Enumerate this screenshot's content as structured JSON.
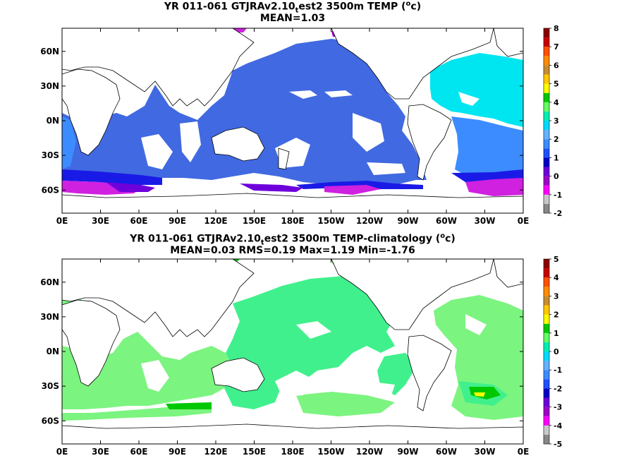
{
  "panels": [
    {
      "title_main": "YR 011-061 GTJRAv2.10",
      "title_sub": "t",
      "title_rest": "est2 3500m TEMP (",
      "title_sup": "o",
      "title_end": "c)",
      "stats": "MEAN=1.03",
      "colorbar_labels": [
        "8",
        "7",
        "6",
        "5",
        "4",
        "3",
        "2",
        "1",
        "0",
        "-1",
        "-2"
      ]
    },
    {
      "title_main": "YR 011-061 GTJRAv2.10",
      "title_sub": "t",
      "title_rest": "est2 3500m TEMP-climatology (",
      "title_sup": "o",
      "title_end": "c)",
      "stats": "MEAN=0.03   RMS=0.19   Max=1.19   Min=-1.76",
      "colorbar_labels": [
        "5",
        "4",
        "3",
        "2",
        "1",
        "0",
        "-1",
        "-2",
        "-3",
        "-4",
        "-5"
      ]
    }
  ],
  "lat_labels": [
    "60N",
    "30N",
    "0N",
    "30S",
    "60S"
  ],
  "lon_labels": [
    "0E",
    "30E",
    "60E",
    "90E",
    "120E",
    "150E",
    "180E",
    "150W",
    "120W",
    "90W",
    "60W",
    "30W",
    "0E"
  ],
  "colorbar_colors": [
    "#888888",
    "#c8c8c8",
    "#ff00ff",
    "#a000c8",
    "#6e00dc",
    "#0000c8",
    "#1e50ff",
    "#3c8cff",
    "#64b4ff",
    "#00dcff",
    "#00f0b4",
    "#64ff64",
    "#00c800",
    "#ffff00",
    "#ffc800",
    "#c88c32",
    "#ff8c00",
    "#ff5000",
    "#c80000",
    "#8c0000"
  ],
  "colors": {
    "panel1_ocean": "#4169e1",
    "panel1_atlantic": "#00e6f0",
    "panel1_south": "#1a1ae6",
    "panel1_polar": "#d020e0",
    "panel2_ocean": "#40f08c",
    "panel2_light": "#7cf480",
    "panel2_bright": "#00c800"
  }
}
